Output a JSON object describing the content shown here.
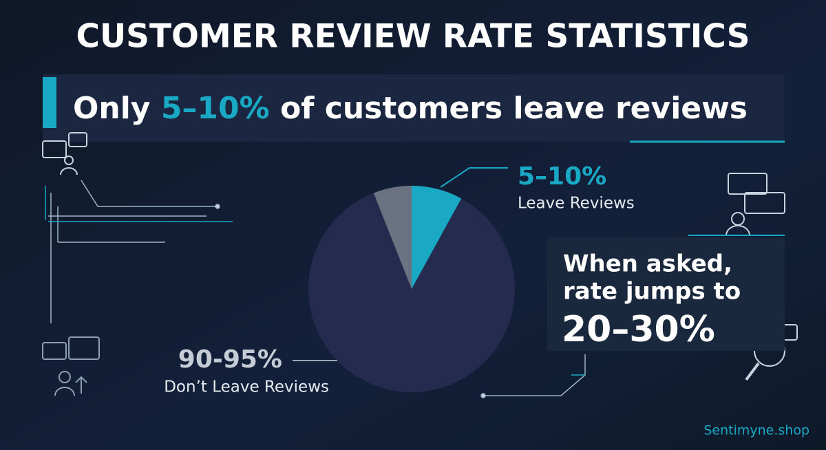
{
  "chart_data": {
    "type": "pie",
    "title": "CUSTOMER REVIEW RATE STATISTICS",
    "subtitle": {
      "before": "Only ",
      "highlight": "5–10%",
      "after": " of customers leave reviews"
    },
    "categories": [
      "Leave Reviews",
      "Don’t Leave Reviews",
      null
    ],
    "values": [
      8,
      86,
      6
    ],
    "colors": [
      "#1aa9c4",
      "#252b4f",
      "#6b7382"
    ],
    "annotations": [
      {
        "value_text": "5–10%",
        "label": "Leave Reviews"
      },
      {
        "value_text": "90-95%",
        "label": "Don’t Leave Reviews"
      }
    ],
    "callout": {
      "lines": [
        "When asked,",
        "rate jumps to"
      ],
      "highlight": "20–30%"
    },
    "footer": "Sentimyne.shop"
  }
}
